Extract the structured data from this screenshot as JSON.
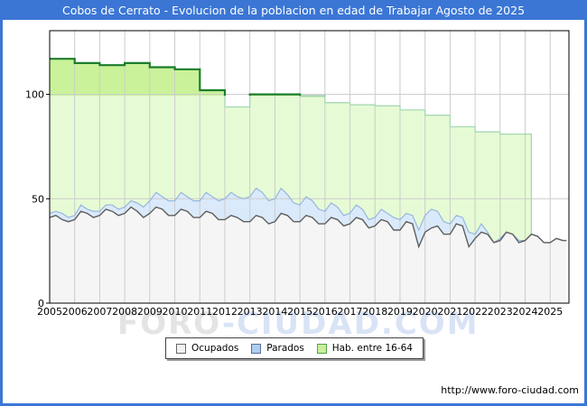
{
  "header": {
    "title": "Cobos de Cerrato - Evolucion de la poblacion en edad de Trabajar Agosto de 2025"
  },
  "footer": {
    "url": "http://www.foro-ciudad.com"
  },
  "watermark": {
    "part1": "FORO",
    "part2": "-CIUDAD.COM"
  },
  "colors": {
    "frame_blue": "#3b76d5",
    "titlebar_text": "#ffffff",
    "grid": "#cccccc",
    "plot_border": "#000000",
    "axis_text": "#000000"
  },
  "legend": {
    "items": [
      {
        "label": "Ocupados",
        "fill": "#f2f2f2",
        "border": "#666666"
      },
      {
        "label": "Parados",
        "fill": "#aecdf2",
        "border": "#5a6f9e"
      },
      {
        "label": "Hab. entre 16-64",
        "fill": "#c9ef9c",
        "border": "#55a04a"
      }
    ]
  },
  "chart_data": {
    "type": "area",
    "title": "Cobos de Cerrato - Evolucion de la poblacion en edad de Trabajar Agosto de 2025",
    "xlabel": "",
    "ylabel": "",
    "x_ticks": [
      2005,
      2006,
      2007,
      2008,
      2009,
      2010,
      2011,
      2012,
      2013,
      2014,
      2015,
      2016,
      2017,
      2018,
      2019,
      2020,
      2021,
      2022,
      2023,
      2024,
      2025
    ],
    "y_ticks": [
      0,
      50,
      100
    ],
    "xlim": [
      2005,
      2025.75
    ],
    "ylim": [
      0,
      130.5
    ],
    "grid": true,
    "legend_position": "bottom",
    "x": [
      2005,
      2005.25,
      2005.5,
      2005.75,
      2006,
      2006.25,
      2006.5,
      2006.75,
      2007,
      2007.25,
      2007.5,
      2007.75,
      2008,
      2008.25,
      2008.5,
      2008.75,
      2009,
      2009.25,
      2009.5,
      2009.75,
      2010,
      2010.25,
      2010.5,
      2010.75,
      2011,
      2011.25,
      2011.5,
      2011.75,
      2012,
      2012.25,
      2012.5,
      2012.75,
      2013,
      2013.25,
      2013.5,
      2013.75,
      2014,
      2014.25,
      2014.5,
      2014.75,
      2015,
      2015.25,
      2015.5,
      2015.75,
      2016,
      2016.25,
      2016.5,
      2016.75,
      2017,
      2017.25,
      2017.5,
      2017.75,
      2018,
      2018.25,
      2018.5,
      2018.75,
      2019,
      2019.25,
      2019.5,
      2019.75,
      2020,
      2020.25,
      2020.5,
      2020.75,
      2021,
      2021.25,
      2021.5,
      2021.75,
      2022,
      2022.25,
      2022.5,
      2022.75,
      2023,
      2023.25,
      2023.5,
      2023.75,
      2024,
      2024.25,
      2024.5,
      2024.75,
      2025,
      2025.25,
      2025.5,
      2025.65
    ],
    "series": [
      {
        "name": "Ocupados",
        "fill": "#f5f5f5",
        "stroke": "#5f5f5f",
        "values": [
          41,
          42,
          40,
          39,
          40,
          44,
          43,
          41,
          42,
          45,
          44,
          42,
          43,
          46,
          44,
          41,
          43,
          46,
          45,
          42,
          42,
          45,
          44,
          41,
          41,
          44,
          43,
          40,
          40,
          42,
          41,
          39,
          39,
          42,
          41,
          38,
          39,
          43,
          42,
          39,
          39,
          42,
          41,
          38,
          38,
          41,
          40,
          37,
          38,
          41,
          40,
          36,
          37,
          40,
          39,
          35,
          35,
          39,
          38,
          27,
          34,
          36,
          37,
          33,
          33,
          38,
          37,
          27,
          31,
          34,
          33,
          29,
          30,
          34,
          33,
          29,
          30,
          33,
          32,
          29,
          29,
          31,
          30,
          30
        ]
      },
      {
        "name": "Parados",
        "stacked_on": "Ocupados",
        "fill": "#daeafb",
        "stroke": "#96b6de",
        "values": [
          2,
          2,
          3,
          2,
          2,
          3,
          2,
          3,
          2,
          2,
          3,
          3,
          3,
          3,
          4,
          5,
          6,
          7,
          6,
          7,
          7,
          8,
          7,
          8,
          8,
          9,
          8,
          9,
          10,
          11,
          10,
          11,
          12,
          13,
          12,
          11,
          11,
          12,
          10,
          9,
          8,
          9,
          8,
          7,
          6,
          7,
          6,
          5,
          5,
          6,
          5,
          4,
          4,
          5,
          4,
          6,
          5,
          4,
          4,
          8,
          8,
          9,
          7,
          6,
          5,
          4,
          4,
          7,
          2,
          4,
          1,
          0,
          1,
          0,
          0,
          1,
          0,
          0,
          0,
          0,
          0,
          0,
          0,
          0
        ]
      },
      {
        "name": "Hab. entre 16-64",
        "step": "annual",
        "fill_light": "#e6fbd5",
        "fill_dark_above_100": "#c9f29a",
        "stroke_light": "#a6d8b4",
        "stroke_dark_above_100": "#1d7e2c",
        "x": [
          2005,
          2006,
          2007,
          2008,
          2009,
          2010,
          2011,
          2012,
          2013,
          2014,
          2015,
          2016,
          2017,
          2018,
          2019,
          2020,
          2021,
          2022,
          2023
        ],
        "values": [
          117,
          115,
          114,
          115,
          113,
          112,
          102,
          94,
          100,
          100,
          99,
          96,
          95,
          94.5,
          92.5,
          90,
          84.5,
          82,
          81
        ],
        "end_x": 2024.25
      }
    ]
  }
}
